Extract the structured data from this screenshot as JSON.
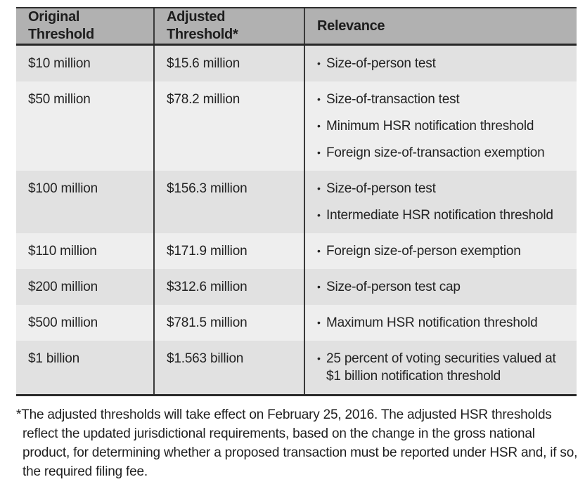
{
  "table": {
    "bullet": "•",
    "headers": [
      "Original Threshold",
      "Adjusted Threshold*",
      "Relevance"
    ],
    "rows": [
      {
        "original": "$10 million",
        "adjusted": "$15.6 million",
        "relevance": [
          "Size-of-person test"
        ]
      },
      {
        "original": "$50 million",
        "adjusted": "$78.2 million",
        "relevance": [
          "Size-of-transaction test",
          "Minimum HSR notification threshold",
          "Foreign size-of-transaction exemption"
        ]
      },
      {
        "original": "$100 million",
        "adjusted": "$156.3 million",
        "relevance": [
          "Size-of-person test",
          "Intermediate HSR notification threshold"
        ]
      },
      {
        "original": "$110 million",
        "adjusted": "$171.9 million",
        "relevance": [
          "Foreign size-of-person exemption"
        ]
      },
      {
        "original": "$200 million",
        "adjusted": "$312.6 million",
        "relevance": [
          "Size-of-person test cap"
        ]
      },
      {
        "original": "$500 million",
        "adjusted": "$781.5 million",
        "relevance": [
          "Maximum HSR notification threshold"
        ]
      },
      {
        "original": "$1 billion",
        "adjusted": "$1.563 billion",
        "relevance": [
          "25 percent of voting securities valued at $1 billion notification threshold"
        ]
      }
    ]
  },
  "footnote": "*The adjusted thresholds will take effect on February 25, 2016. The adjusted HSR thresholds reflect the updated jurisdictional requirements, based on the change in the gross national product, for determining whether a proposed transaction must be reported under HSR and, if so, the required filing fee.",
  "colors": {
    "header_bg": "#b1b1b1",
    "row_dark": "#e1e1e1",
    "row_light": "#eeeeee",
    "line_dark": "#2a2a2a",
    "separator": "#3a3a3a",
    "text": "#232323"
  }
}
